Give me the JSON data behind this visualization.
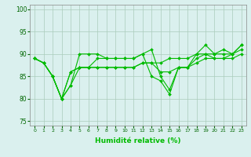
{
  "title": "",
  "xlabel": "Humidité relative (%)",
  "ylabel": "",
  "xlim": [
    -0.5,
    23.5
  ],
  "ylim": [
    74,
    101
  ],
  "yticks": [
    75,
    80,
    85,
    90,
    95,
    100
  ],
  "xticks": [
    0,
    1,
    2,
    3,
    4,
    5,
    6,
    7,
    8,
    9,
    10,
    11,
    12,
    13,
    14,
    15,
    16,
    17,
    18,
    19,
    20,
    21,
    22,
    23
  ],
  "bg_color": "#daf0ee",
  "grid_color": "#aaccbb",
  "line_color": "#00bb00",
  "lines": [
    [
      89,
      88,
      85,
      80,
      83,
      90,
      90,
      90,
      89,
      89,
      89,
      89,
      90,
      91,
      85,
      82,
      87,
      87,
      90,
      92,
      90,
      91,
      90,
      92
    ],
    [
      89,
      88,
      85,
      80,
      86,
      87,
      87,
      87,
      87,
      87,
      87,
      87,
      88,
      88,
      88,
      89,
      89,
      89,
      90,
      90,
      90,
      90,
      90,
      91
    ],
    [
      89,
      88,
      85,
      80,
      86,
      87,
      87,
      87,
      87,
      87,
      87,
      87,
      88,
      88,
      86,
      86,
      87,
      87,
      88,
      89,
      89,
      89,
      89,
      90
    ],
    [
      89,
      88,
      85,
      80,
      83,
      87,
      87,
      89,
      89,
      89,
      89,
      89,
      90,
      85,
      84,
      81,
      87,
      87,
      89,
      90,
      89,
      89,
      90,
      92
    ]
  ]
}
